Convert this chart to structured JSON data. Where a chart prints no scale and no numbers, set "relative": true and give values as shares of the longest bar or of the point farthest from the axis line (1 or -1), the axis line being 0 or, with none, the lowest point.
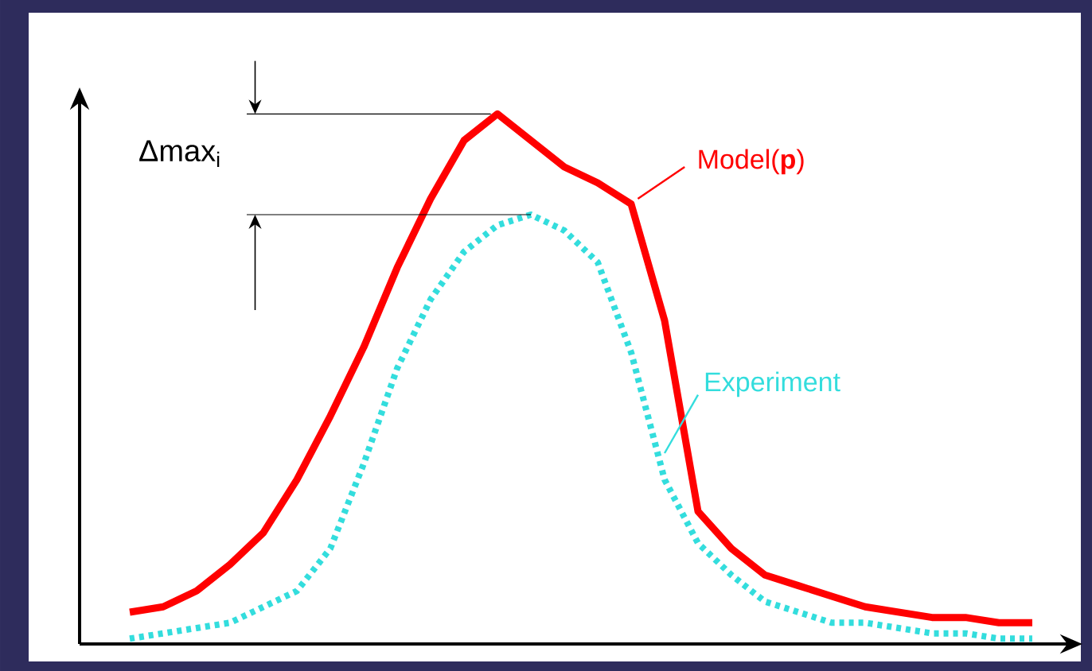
{
  "chart_data": {
    "type": "line",
    "relative": true,
    "categories": [
      null,
      null,
      null,
      null,
      null,
      null,
      null,
      null,
      null,
      null,
      null,
      null,
      null,
      null,
      null,
      null,
      null,
      null,
      null,
      null,
      null,
      null,
      null,
      null,
      null,
      null,
      null,
      null
    ],
    "series": [
      {
        "name": "Model(**p**)",
        "color": "#ff0000",
        "line_style": "solid",
        "values": [
          0.06,
          0.07,
          0.1,
          0.15,
          0.21,
          0.31,
          0.43,
          0.56,
          0.71,
          0.84,
          0.95,
          1.0,
          0.95,
          0.9,
          0.87,
          0.83,
          0.61,
          0.25,
          0.18,
          0.13,
          0.11,
          0.09,
          0.07,
          0.06,
          0.05,
          0.05,
          0.04,
          0.04
        ]
      },
      {
        "name": "Experiment",
        "color": "#33dddd",
        "line_style": "dotted",
        "values": [
          0.01,
          0.02,
          0.03,
          0.04,
          0.07,
          0.1,
          0.18,
          0.34,
          0.52,
          0.65,
          0.74,
          0.79,
          0.81,
          0.78,
          0.72,
          0.55,
          0.31,
          0.19,
          0.13,
          0.08,
          0.06,
          0.04,
          0.04,
          0.03,
          0.02,
          0.02,
          0.01,
          0.01
        ]
      }
    ],
    "annotations": [
      "Δmax$_{i}$"
    ],
    "marker": "none"
  }
}
